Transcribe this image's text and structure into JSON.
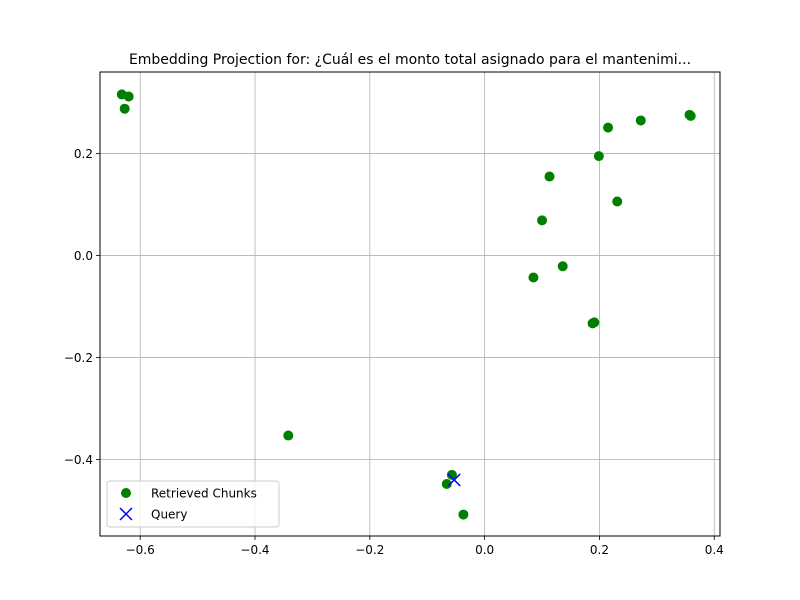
{
  "chart_data": {
    "type": "scatter",
    "title": "Embedding Projection for: ¿Cuál es el monto total asignado para el mantenimi...",
    "xlabel": "",
    "ylabel": "",
    "xlim": [
      -0.67,
      0.41
    ],
    "ylim": [
      -0.55,
      0.36
    ],
    "xticks": [
      -0.6,
      -0.4,
      -0.2,
      0.0,
      0.2,
      0.4
    ],
    "xtick_labels": [
      "−0.6",
      "−0.4",
      "−0.2",
      "0.0",
      "0.2",
      "0.4"
    ],
    "yticks": [
      -0.4,
      -0.2,
      0.0,
      0.2
    ],
    "ytick_labels": [
      "−0.4",
      "−0.2",
      "0.0",
      "0.2"
    ],
    "grid": true,
    "legend_position": "lower-left",
    "series": [
      {
        "name": "Retrieved Chunks",
        "color": "#008000",
        "marker": "circle",
        "points": [
          {
            "x": -0.632,
            "y": 0.316
          },
          {
            "x": -0.62,
            "y": 0.312
          },
          {
            "x": -0.627,
            "y": 0.288
          },
          {
            "x": -0.342,
            "y": -0.353
          },
          {
            "x": -0.057,
            "y": -0.43
          },
          {
            "x": -0.066,
            "y": -0.448
          },
          {
            "x": -0.037,
            "y": -0.508
          },
          {
            "x": 0.085,
            "y": -0.043
          },
          {
            "x": 0.136,
            "y": -0.021
          },
          {
            "x": 0.1,
            "y": 0.069
          },
          {
            "x": 0.113,
            "y": 0.155
          },
          {
            "x": 0.199,
            "y": 0.195
          },
          {
            "x": 0.231,
            "y": 0.106
          },
          {
            "x": 0.215,
            "y": 0.251
          },
          {
            "x": 0.272,
            "y": 0.265
          },
          {
            "x": 0.357,
            "y": 0.276
          },
          {
            "x": 0.359,
            "y": 0.274
          },
          {
            "x": 0.188,
            "y": -0.133
          },
          {
            "x": 0.191,
            "y": -0.131
          }
        ]
      },
      {
        "name": "Query",
        "color": "#0000ff",
        "marker": "x",
        "points": [
          {
            "x": -0.053,
            "y": -0.44
          }
        ]
      }
    ]
  }
}
